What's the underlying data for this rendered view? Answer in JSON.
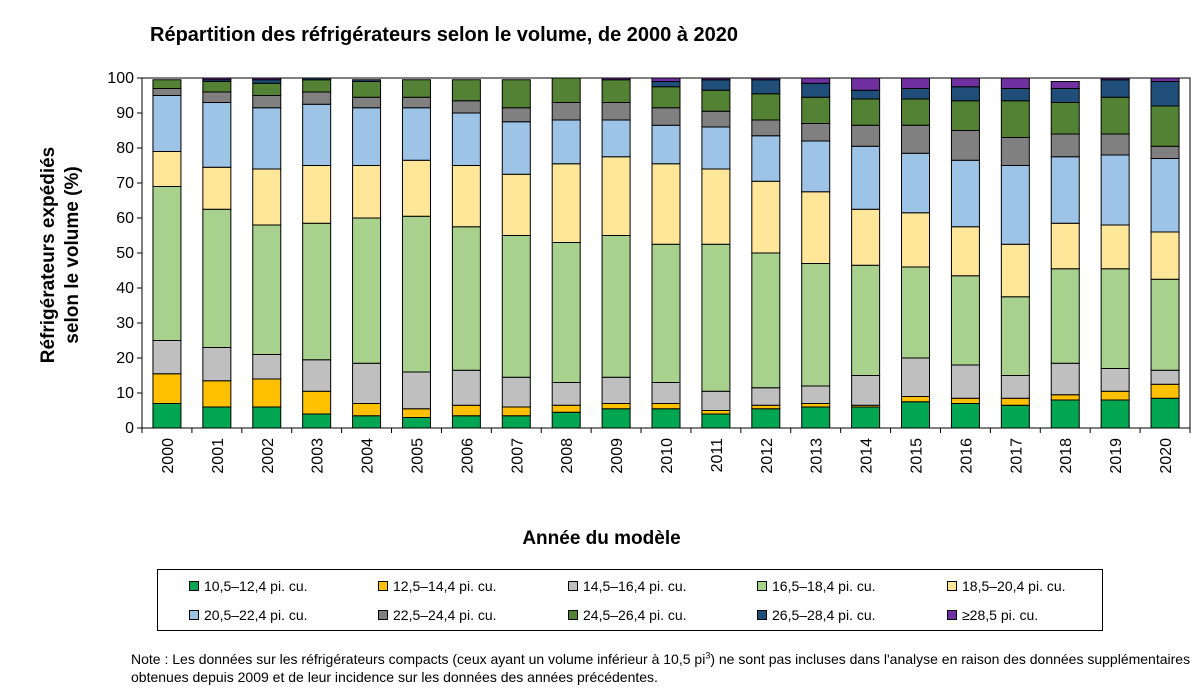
{
  "colors": [
    "#00a651",
    "#ffc000",
    "#bfbfbf",
    "#a9d18e",
    "#ffe699",
    "#9dc3e6",
    "#808080",
    "#548235",
    "#1f4e79",
    "#7030a0"
  ],
  "chart_data": {
    "type": "bar",
    "stacked": true,
    "title": "Répartition des réfrigérateurs selon le volume, de 2000 à 2020",
    "xlabel": "Année du modèle",
    "ylabel_lines": [
      "Réfrigérateurs  expédiés",
      "selon le volume (%)"
    ],
    "ylim": [
      0,
      100
    ],
    "yticks": [
      "0",
      "10",
      "20",
      "30",
      "40",
      "50",
      "60",
      "70",
      "80",
      "90",
      "100"
    ],
    "grid": false,
    "legend_position": "bottom",
    "categories": [
      "2000",
      "2001",
      "2002",
      "2003",
      "2004",
      "2005",
      "2006",
      "2007",
      "2008",
      "2009",
      "2010",
      "2011",
      "2012",
      "2013",
      "2014",
      "2015",
      "2016",
      "2017",
      "2018",
      "2019",
      "2020"
    ],
    "series": [
      {
        "name": "10,5–12,4 pi. cu.",
        "values": [
          7,
          6,
          6,
          4,
          3.5,
          3,
          3.5,
          3.5,
          4.5,
          5.5,
          5.5,
          4,
          5.5,
          6,
          6,
          7.5,
          7,
          6.5,
          8,
          8,
          8.5
        ]
      },
      {
        "name": "12,5–14,4 pi. cu.",
        "values": [
          8.5,
          7.5,
          8,
          6.5,
          3.5,
          2.5,
          3,
          2.5,
          2,
          1.5,
          1.5,
          1,
          1,
          1,
          0.5,
          1.5,
          1.5,
          2,
          1.5,
          2.5,
          4
        ]
      },
      {
        "name": "14,5–16,4 pi. cu.",
        "values": [
          9.5,
          9.5,
          7,
          9,
          11.5,
          10.5,
          10,
          8.5,
          6.5,
          7.5,
          6,
          5.5,
          5,
          5,
          8.5,
          11,
          9.5,
          6.5,
          9,
          6.5,
          4
        ]
      },
      {
        "name": "16,5–18,4 pi. cu.",
        "values": [
          44,
          39.5,
          37,
          39,
          41.5,
          44.5,
          41,
          40.5,
          40,
          40.5,
          39.5,
          42,
          38.5,
          35,
          31.5,
          26,
          25.5,
          22.5,
          27,
          28.5,
          26
        ]
      },
      {
        "name": "18,5–20,4 pi. cu.",
        "values": [
          10,
          12,
          16,
          16.5,
          15,
          16,
          17.5,
          17.5,
          22.5,
          22.5,
          23,
          21.5,
          20.5,
          20.5,
          16,
          15.5,
          14,
          15,
          13,
          12.5,
          13.5
        ]
      },
      {
        "name": "20,5–22,4 pi. cu.",
        "values": [
          16,
          18.5,
          17.5,
          17.5,
          16.5,
          15,
          15,
          15,
          12.5,
          10.5,
          11,
          12,
          13,
          14.5,
          18,
          17,
          19,
          22.5,
          19,
          20,
          21
        ]
      },
      {
        "name": "22,5–24,4 pi. cu.",
        "values": [
          2,
          3,
          3.5,
          3.5,
          3,
          3,
          3.5,
          4,
          5,
          5,
          5,
          4.5,
          4.5,
          5,
          6,
          8,
          8.5,
          8,
          6.5,
          6,
          3.5
        ]
      },
      {
        "name": "24,5–26,4 pi. cu.",
        "values": [
          2.5,
          3,
          3.5,
          3.5,
          4.5,
          5,
          6,
          8,
          7,
          6.5,
          6,
          6,
          7.5,
          7.5,
          7.5,
          7.5,
          8.5,
          10.5,
          9,
          10.5,
          11.5
        ]
      },
      {
        "name": "26,5–28,4 pi. cu.",
        "values": [
          0,
          0.5,
          1,
          0.5,
          0.5,
          0,
          0,
          0,
          0,
          0,
          1.5,
          3,
          4,
          4,
          2.5,
          3,
          4,
          3.5,
          4,
          5,
          7
        ]
      },
      {
        "name": "≥28,5 pi. cu.",
        "values": [
          0,
          0.5,
          0.5,
          0,
          0,
          0,
          0,
          0,
          0,
          0.5,
          1,
          0.5,
          0.5,
          1.5,
          3.5,
          3,
          2.5,
          3,
          2,
          0.5,
          1
        ]
      }
    ]
  },
  "note": "Note : Les données sur les réfrigérateurs compacts (ceux ayant un volume  inférieur à 10,5 pi",
  "note_sup": "3",
  "note_rest": ") ne sont pas incluses dans l'analyse en raison des données supplémentaires  obtenues depuis 2009 et de leur incidence sur les données des années précédentes."
}
